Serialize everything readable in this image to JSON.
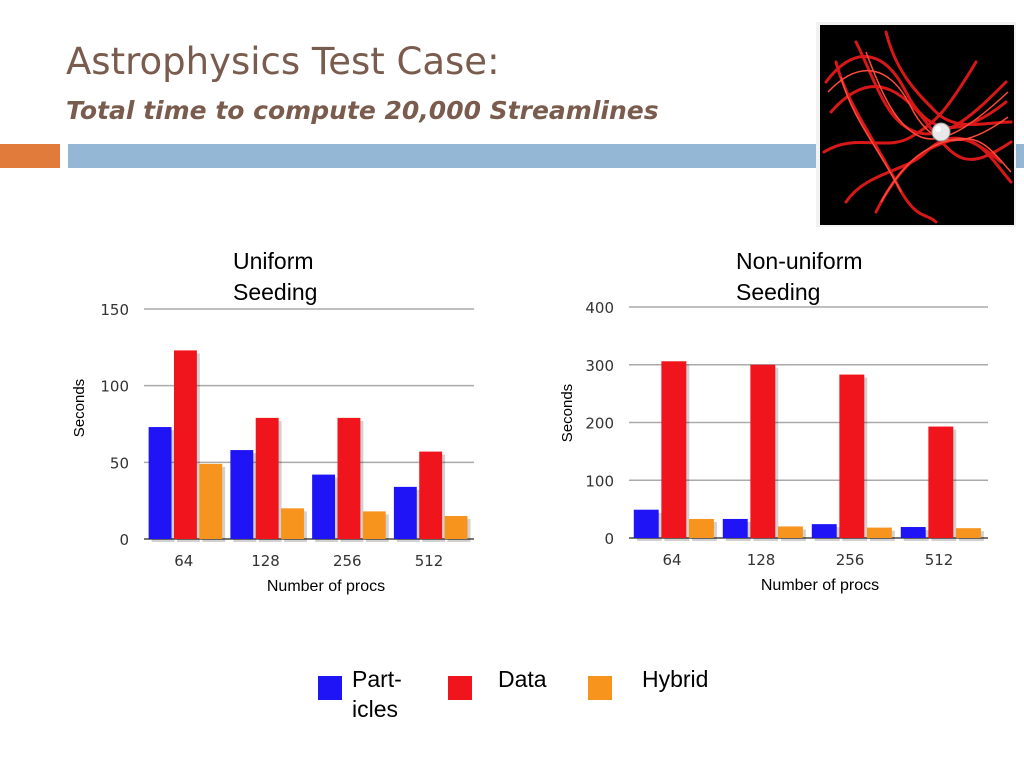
{
  "slide": {
    "title": "Astrophysics Test Case:",
    "subtitle": "Total time to compute 20,000 Streamlines",
    "accent_colors": {
      "orange": "#e07b3c",
      "blue": "#93b7d5"
    }
  },
  "legend": [
    {
      "label": "Part-icles",
      "line1": "Part-",
      "line2": "icles",
      "color": "#1f14f5"
    },
    {
      "label": "Data",
      "line1": "Data",
      "line2": "",
      "color": "#f0141c"
    },
    {
      "label": "Hybrid",
      "line1": "Hybrid",
      "line2": "",
      "color": "#f7941d"
    }
  ],
  "chart_data": [
    {
      "type": "bar",
      "title": "Uniform Seeding",
      "title_lines": [
        "Uniform",
        "Seeding"
      ],
      "xlabel": "Number of procs",
      "ylabel": "Seconds",
      "categories": [
        "64",
        "128",
        "256",
        "512"
      ],
      "ylim": [
        0,
        150
      ],
      "yticks": [
        0,
        50,
        100,
        150
      ],
      "grid": true,
      "series": [
        {
          "name": "Part-icles",
          "color": "#1f14f5",
          "values": [
            73,
            58,
            42,
            34
          ]
        },
        {
          "name": "Data",
          "color": "#f0141c",
          "values": [
            123,
            79,
            79,
            57
          ]
        },
        {
          "name": "Hybrid",
          "color": "#f7941d",
          "values": [
            49,
            20,
            18,
            15
          ]
        }
      ]
    },
    {
      "type": "bar",
      "title": "Non-uniform Seeding",
      "title_lines": [
        "Non-uniform",
        "Seeding"
      ],
      "xlabel": "Number of procs",
      "ylabel": "Seconds",
      "categories": [
        "64",
        "128",
        "256",
        "512"
      ],
      "ylim": [
        0,
        400
      ],
      "yticks": [
        0,
        100,
        200,
        300,
        400
      ],
      "grid": true,
      "series": [
        {
          "name": "Part-icles",
          "color": "#1f14f5",
          "values": [
            49,
            33,
            24,
            19
          ]
        },
        {
          "name": "Data",
          "color": "#f0141c",
          "values": [
            306,
            300,
            283,
            193
          ]
        },
        {
          "name": "Hybrid",
          "color": "#f7941d",
          "values": [
            33,
            20,
            18,
            17
          ]
        }
      ]
    }
  ]
}
